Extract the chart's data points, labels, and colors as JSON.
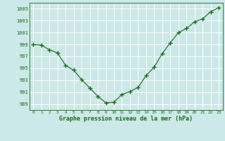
{
  "x": [
    0,
    1,
    2,
    3,
    4,
    5,
    6,
    7,
    8,
    9,
    10,
    11,
    12,
    13,
    14,
    15,
    16,
    17,
    18,
    19,
    20,
    21,
    22,
    23
  ],
  "y": [
    999.0,
    998.9,
    998.1,
    997.6,
    995.5,
    994.7,
    993.1,
    991.7,
    990.3,
    989.2,
    989.3,
    990.6,
    991.1,
    991.8,
    993.8,
    995.2,
    997.5,
    999.3,
    1001.0,
    1001.7,
    1002.8,
    1003.3,
    1004.5,
    1005.2
  ],
  "xlim": [
    -0.5,
    23.5
  ],
  "ylim": [
    988,
    1006
  ],
  "yticks": [
    989,
    991,
    993,
    995,
    997,
    999,
    1001,
    1003,
    1005
  ],
  "xticks": [
    0,
    1,
    2,
    3,
    4,
    5,
    6,
    7,
    8,
    9,
    10,
    11,
    12,
    13,
    14,
    15,
    16,
    17,
    18,
    19,
    20,
    21,
    22,
    23
  ],
  "line_color": "#1a6b1a",
  "marker_color": "#1a6b1a",
  "bg_color": "#cce8e8",
  "grid_color": "#b8d8d8",
  "xlabel": "Graphe pression niveau de la mer (hPa)",
  "xlabel_color": "#1a6b1a",
  "tick_color": "#1a6b1a"
}
